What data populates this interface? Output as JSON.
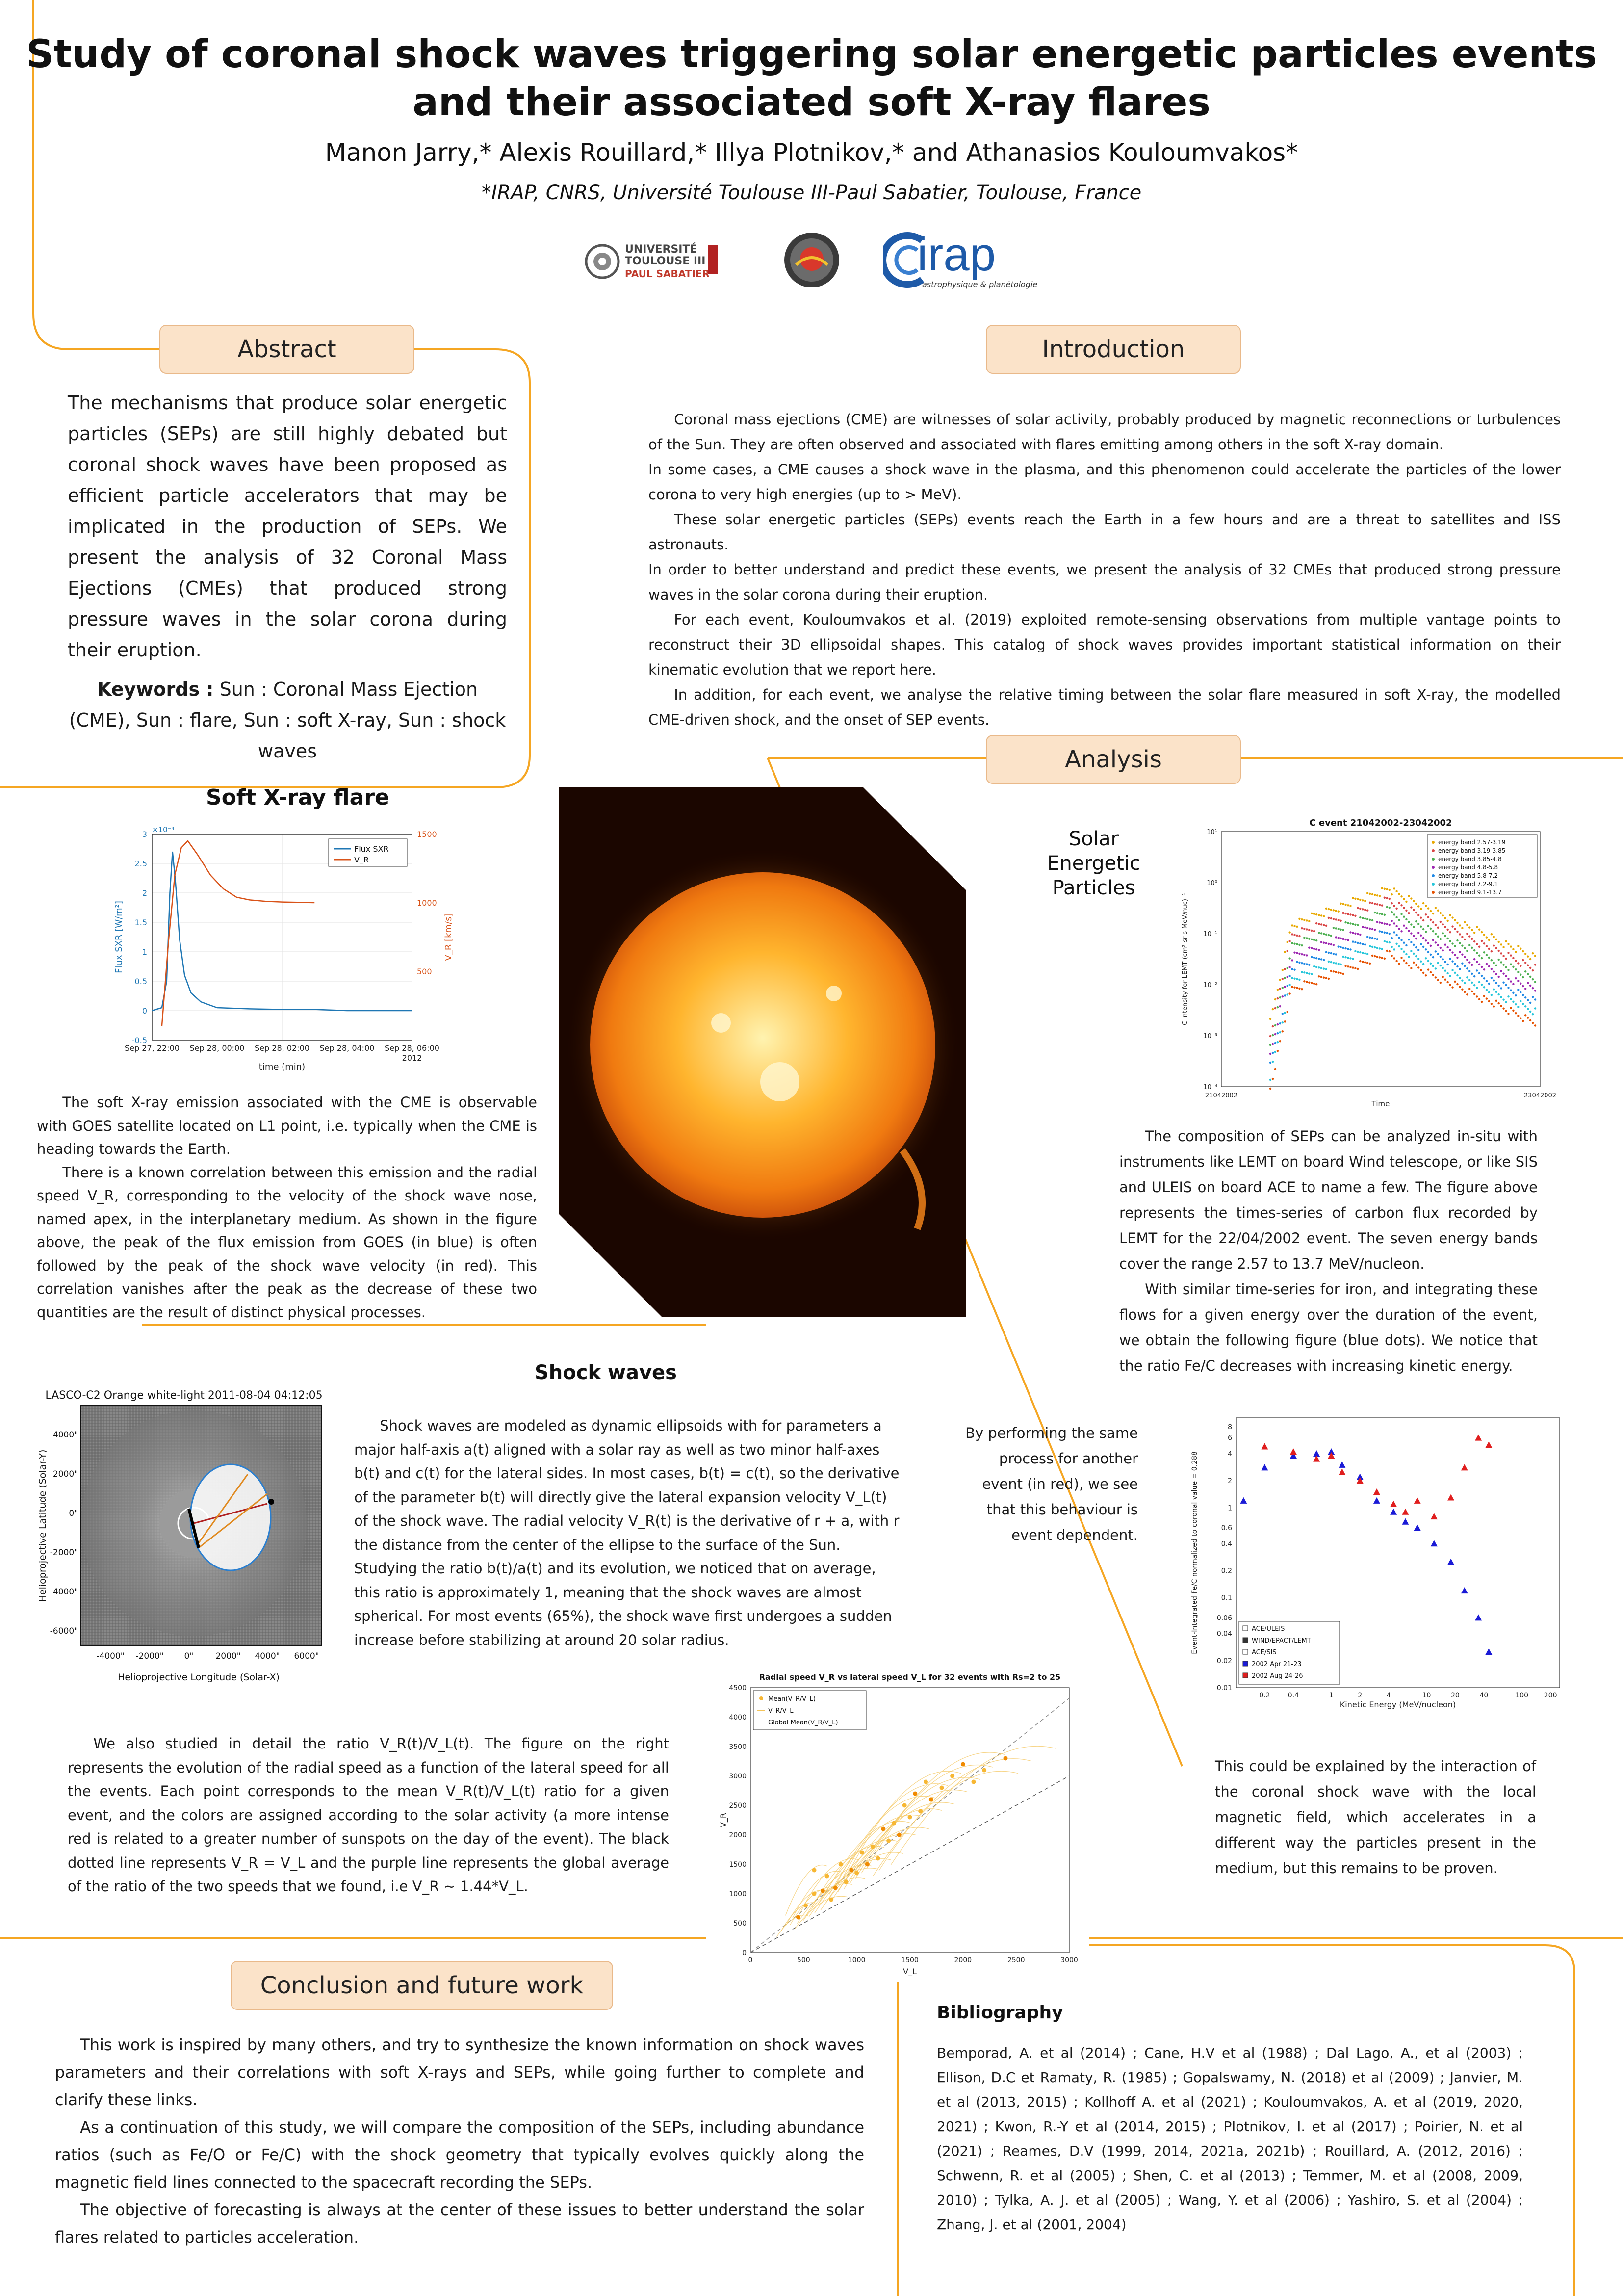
{
  "header": {
    "title_line1": "Study of coronal shock waves triggering solar energetic particles events",
    "title_line2": "and their associated soft X-ray flares",
    "authors": "Manon Jarry,* Alexis Rouillard,* Illya Plotnikov,* and Athanasios Kouloumvakos*",
    "affiliation": "*IRAP, CNRS, Université Toulouse III-Paul Sabatier, Toulouse, France",
    "logos": {
      "ut3_line1": "UNIVERSITÉ",
      "ut3_line2": "TOULOUSE III",
      "ut3_line3": "PAUL SABATIER",
      "irap_name": "irap",
      "irap_tagline": "astrophysique & planétologie"
    }
  },
  "colors": {
    "accent_line": "#f5a623",
    "pill_fill": "#fbe3c9",
    "sxr_blue": "#1f77b4",
    "vr_red": "#d95319"
  },
  "abstract": {
    "heading": "Abstract",
    "body": "The mechanisms that produce solar energetic particles (SEPs) are still highly debated but coronal shock waves have been proposed as efficient particle accelerators that may be implicated in the production of SEPs.  We present the analysis of 32 Coronal Mass Ejections (CMEs) that produced strong pressure waves in the solar corona during their eruption.",
    "keywords_label": "Keywords :",
    "keywords": " Sun : Coronal Mass Ejection (CME), Sun : flare, Sun : soft X-ray, Sun : shock waves"
  },
  "introduction": {
    "heading": "Introduction",
    "p1": "Coronal mass ejections (CME) are witnesses of solar activity, probably produced by magnetic reconnections or turbulences of the Sun. They are often observed and associated with flares emitting among others in the soft X-ray domain.",
    "p1b": "In some cases, a CME causes a shock wave in the plasma, and this phenomenon could accelerate the particles of the lower corona to very high energies (up to > MeV).",
    "p2": "These solar energetic particles (SEPs) events reach the Earth in a few hours and are a threat to satellites and ISS astronauts.",
    "p2b": "In order to better understand and predict these events, we present the analysis of 32 CMEs that produced strong pressure waves in the solar corona during their eruption.",
    "p3": "For each event, Kouloumvakos et al. (2019) exploited remote-sensing observations from multiple vantage points to reconstruct their 3D ellipsoidal shapes. This catalog of shock waves provides important statistical information on their kinematic evolution that we report here.",
    "p4": "In addition, for each event, we analyse the relative timing between the solar flare measured in soft X-ray, the modelled CME-driven shock, and the onset of SEP events."
  },
  "analysis": {
    "heading": "Analysis"
  },
  "sxr": {
    "heading": "Soft X-ray flare",
    "p1": "The soft X-ray emission associated with the CME is observable with GOES satellite located on L1 point, i.e. typically when the CME is heading towards the Earth.",
    "p2": "There is a known correlation between this emission and the radial speed V_R, corresponding to the velocity of the shock wave nose, named apex, in the interplanetary medium. As shown in the figure above, the peak of the flux emission from GOES (in blue) is often followed by the peak of the shock wave velocity (in red). This correlation vanishes after the peak as the decrease of these two quantities are the result of distinct physical processes."
  },
  "sep": {
    "heading_line1": "Solar",
    "heading_line2": "Energetic",
    "heading_line3": "Particles",
    "p1": "The composition of SEPs can be analyzed in-situ with instruments like LEMT on board Wind telescope, or like SIS and ULEIS on board ACE to name a few. The figure above represents the times-series of carbon flux recorded by LEMT for the 22/04/2002 event. The seven energy bands cover the range 2.57 to 13.7 MeV/nucleon.",
    "p2": "With similar time-series for iron, and integrating these flows for a given energy over the duration of the event, we obtain the following figure (blue dots). We notice that the ratio Fe/C decreases with increasing kinetic energy.",
    "side": "By performing the same process for another event (in red), we see that this behaviour is event dependent.",
    "p3": "This could be explained by the interaction of the coronal shock wave with the local magnetic field, which accelerates in a different way the particles present in the medium, but this remains to be proven."
  },
  "shock": {
    "heading": "Shock waves",
    "p1": "Shock waves are modeled as dynamic ellipsoids with for parameters a major half-axis a(t) aligned with a solar ray as well as two minor half-axes b(t) and c(t) for the lateral sides. In most cases, b(t) = c(t), so the derivative of the parameter b(t) will directly give the lateral expansion velocity V_L(t) of the shock wave. The radial velocity V_R(t) is the derivative of r + a, with r the distance from the center of the ellipse to the surface of the Sun. Studying the ratio b(t)/a(t) and its evolution, we noticed that on average, this ratio is approximately 1, meaning that the shock waves are almost spherical. For most events (65%), the shock wave first undergoes a sudden increase before stabilizing at around 20 solar radius.",
    "p2": "We also studied in detail the ratio V_R(t)/V_L(t). The figure on the right represents the evolution of the radial speed as a function of the lateral speed for all the events. Each point corresponds to the mean V_R(t)/V_L(t) ratio for a given event, and the colors are assigned according to the solar activity (a more intense red is related to a greater number of sunspots on the day of the event). The black dotted line represents V_R = V_L and the purple line represents the global average of the ratio of the two speeds that we found, i.e V_R ~ 1.44*V_L."
  },
  "lasco": {
    "title": "LASCO-C2 Orange white-light 2011-08-04 04:12:05",
    "xlabel": "Helioprojective Longitude (Solar-X)",
    "ylabel": "Helioprojective Latitude (Solar-Y)",
    "xticks": [
      "-4000\"",
      "-2000\"",
      "0\"",
      "2000\"",
      "4000\"",
      "6000\""
    ],
    "yticks": [
      "4000\"",
      "2000\"",
      "0\"",
      "-2000\"",
      "-4000\"",
      "-6000\""
    ]
  },
  "conclusion": {
    "heading": "Conclusion and future work",
    "p1": "This work is inspired by many others, and try to synthesize the known information on shock waves parameters and their correlations with soft X-rays and SEPs, while going further to complete and clarify these links.",
    "p2": "As a continuation of this study, we will compare the composition of the SEPs, including abundance ratios (such as Fe/O or Fe/C) with the shock geometry that typically evolves quickly along the magnetic field lines connected to the spacecraft recording the SEPs.",
    "p3": "The objective of forecasting is always at the center of these issues to better understand the solar flares related to particles acceleration."
  },
  "bibliography": {
    "heading": "Bibliography",
    "body": "Bemporad, A. et al (2014)  ; Cane, H.V et al (1988) ; Dal Lago, A., et al (2003) ; Ellison, D.C et Ramaty, R. (1985) ; Gopalswamy, N. (2018) et al (2009) ; Janvier, M. et al (2013, 2015) ; Kollhoff A. et al (2021) ; Kouloumvakos, A. et al (2019, 2020, 2021) ; Kwon, R.-Y et al (2014, 2015) ; Plotnikov, I. et al (2017) ; Poirier, N. et al (2021) ; Reames, D.V (1999, 2014, 2021a, 2021b) ; Rouillard, A. (2012, 2016) ; Schwenn, R. et al (2005) ; Shen, C. et al (2013) ; Temmer, M. et al (2008, 2009, 2010) ; Tylka, A. J. et al (2005) ; Wang, Y. et al (2006) ; Yashiro, S. et al (2004) ; Zhang, J. et al (2001, 2004)"
  },
  "chart_data": [
    {
      "type": "line",
      "id": "sxr_vr",
      "x_ticks": [
        "Sep 27, 22:00",
        "Sep 28, 00:00",
        "Sep 28, 02:00",
        "Sep 28, 04:00",
        "Sep 28, 06:00"
      ],
      "x_extra": "2012",
      "xlabel": "time (min)",
      "ylabel_left": "Flux SXR [W/m²]",
      "ylabel_right": "V_R [km/s]",
      "left_ticks": [
        "-0.5",
        "0",
        "0.5",
        "1",
        "1.5",
        "2",
        "2.5",
        "3"
      ],
      "left_exponent": "×10⁻⁴",
      "right_ticks": [
        "500",
        "1000",
        "1500"
      ],
      "ylim_left": [
        -0.5,
        3
      ],
      "ylim_right": [
        0,
        1500
      ],
      "legend": [
        "Flux SXR",
        "V_R"
      ],
      "series": [
        {
          "name": "Flux SXR",
          "x": [
            0,
            0.3,
            0.45,
            0.55,
            0.63,
            0.72,
            0.85,
            1.0,
            1.2,
            1.5,
            2.0,
            3.0,
            4.0,
            5.0,
            6.0,
            7.0,
            8.0
          ],
          "values": [
            0.0,
            0.05,
            0.5,
            2.0,
            2.7,
            2.2,
            1.2,
            0.6,
            0.3,
            0.15,
            0.05,
            0.03,
            0.02,
            0.02,
            0.0,
            0.0,
            0.0
          ]
        },
        {
          "name": "V_R",
          "x": [
            0.3,
            0.5,
            0.7,
            0.9,
            1.1,
            1.4,
            1.8,
            2.2,
            2.6,
            3.0,
            3.5,
            4.0,
            5.0
          ],
          "values": [
            100,
            700,
            1200,
            1400,
            1450,
            1350,
            1200,
            1100,
            1040,
            1020,
            1010,
            1005,
            1000
          ]
        }
      ]
    },
    {
      "type": "scatter",
      "id": "carbon_flux",
      "title": "C event 21042002-23042002",
      "xlabel": "Time",
      "ylabel": "C intensity for LEMT (cm²-sr-s-MeV/nuc)⁻¹",
      "x_ticks": [
        "21042002",
        "23042002"
      ],
      "y_ticks": [
        "10⁻⁴",
        "10⁻³",
        "10⁻²",
        "10⁻¹",
        "10⁰",
        "10¹"
      ],
      "legend": [
        "energy band 2.57-3.19",
        "energy band 3.19-3.85",
        "energy band 3.85-4.8",
        "energy band 4.8-5.8",
        "energy band 5.8-7.2",
        "energy band 7.2-9.1",
        "energy band 9.1-13.7"
      ],
      "series_colors": [
        "#e8a800",
        "#d94545",
        "#4caf50",
        "#9c27b0",
        "#1e88e5",
        "#26c6da",
        "#e65100"
      ]
    },
    {
      "type": "scatter",
      "id": "fe_c_ratio",
      "xlabel": "Kinetic Energy (MeV/nucleon)",
      "ylabel": "Event-Integrated Fe/C normalized to coronal value = 0.288",
      "x_ticks": [
        "0.2",
        "0.4",
        "1",
        "2",
        "4",
        "10",
        "20",
        "40",
        "100",
        "200"
      ],
      "y_ticks": [
        "0.01",
        "0.02",
        "0.04",
        "0.06",
        "0.1",
        "0.2",
        "0.4",
        "0.6",
        "1",
        "2",
        "4",
        "6",
        "8"
      ],
      "legend": [
        "ACE/ULEIS",
        "WIND/EPACT/LEMT",
        "ACE/SIS",
        "2002 Apr 21-23",
        "2002 Aug 24-26"
      ],
      "series": [
        {
          "name": "2002 Apr 21-23",
          "x": [
            0.12,
            0.2,
            0.4,
            0.7,
            1.0,
            1.3,
            2.0,
            3.0,
            4.5,
            6.0,
            8.0,
            12.0,
            18.0,
            25.0,
            35.0,
            45.0
          ],
          "values": [
            1.2,
            2.8,
            3.8,
            4.0,
            4.2,
            3.0,
            2.2,
            1.2,
            0.9,
            0.7,
            0.6,
            0.4,
            0.25,
            0.12,
            0.06,
            0.025
          ]
        },
        {
          "name": "2002 Aug 24-26",
          "x": [
            0.2,
            0.4,
            0.7,
            1.0,
            1.3,
            2.0,
            3.0,
            4.5,
            6.0,
            8.0,
            12.0,
            18.0,
            25.0,
            35.0,
            45.0
          ],
          "values": [
            4.8,
            4.2,
            3.5,
            3.8,
            2.5,
            2.0,
            1.5,
            1.1,
            0.9,
            1.2,
            0.8,
            1.3,
            2.8,
            6.0,
            5.0
          ]
        }
      ]
    },
    {
      "type": "scatter",
      "id": "vr_vs_vl",
      "title": "Radial speed V_R vs lateral speed V_L for 32 events with Rs=2 to 25",
      "xlabel": "V_L",
      "ylabel": "V_R",
      "x_ticks": [
        "0",
        "500",
        "1000",
        "1500",
        "2000",
        "2500",
        "3000"
      ],
      "y_ticks": [
        "0",
        "500",
        "1000",
        "1500",
        "2000",
        "2500",
        "3000",
        "3500",
        "4000",
        "4500"
      ],
      "xlim": [
        0,
        3000
      ],
      "ylim": [
        0,
        4500
      ],
      "legend": [
        "Mean(V_R/V_L)",
        "V_R/V_L",
        "Global Mean(V_R/V_L)"
      ],
      "series": [
        {
          "name": "Mean(V_R/V_L)",
          "x": [
            450,
            520,
            600,
            680,
            720,
            760,
            800,
            850,
            900,
            950,
            1000,
            1050,
            1100,
            1150,
            1200,
            1250,
            1300,
            1350,
            1400,
            1450,
            1500,
            1550,
            1600,
            1650,
            1700,
            1800,
            1900,
            2000,
            2100,
            2200,
            2400,
            600
          ],
          "values": [
            600,
            800,
            1000,
            1050,
            1300,
            900,
            1100,
            1500,
            1200,
            1400,
            1350,
            1700,
            1500,
            1800,
            1600,
            2100,
            1900,
            2200,
            2000,
            2500,
            2300,
            2700,
            2400,
            2900,
            2600,
            2800,
            3000,
            3200,
            2900,
            3100,
            3300,
            1400
          ]
        }
      ]
    }
  ]
}
